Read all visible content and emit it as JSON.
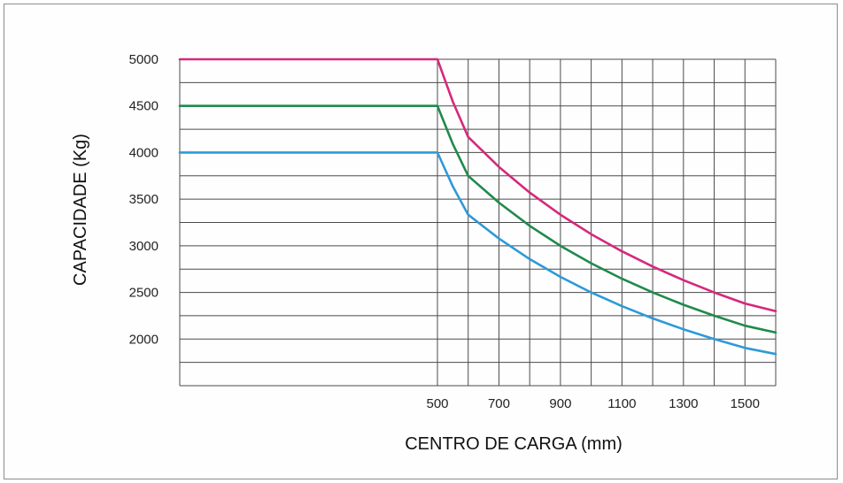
{
  "chart_data": {
    "type": "line",
    "title": "",
    "xlabel": "CENTRO DE CARGA (mm)",
    "ylabel": "CAPACIDADE (Kg)",
    "xlim": [
      0,
      1600
    ],
    "ylim": [
      1500,
      5000
    ],
    "x_ticks": [
      500,
      700,
      900,
      1100,
      1300,
      1500
    ],
    "y_ticks": [
      2000,
      2500,
      3000,
      3500,
      4000,
      4500,
      5000
    ],
    "grid": true,
    "legend": "none",
    "series": [
      {
        "color": "#d6287c",
        "points": [
          [
            0,
            5000
          ],
          [
            500,
            5000
          ],
          [
            550,
            4545
          ],
          [
            600,
            4167
          ],
          [
            700,
            3846
          ],
          [
            800,
            3571
          ],
          [
            900,
            3333
          ],
          [
            1000,
            3125
          ],
          [
            1100,
            2941
          ],
          [
            1200,
            2778
          ],
          [
            1300,
            2632
          ],
          [
            1400,
            2500
          ],
          [
            1500,
            2381
          ],
          [
            1600,
            2300
          ]
        ]
      },
      {
        "color": "#1f8a4c",
        "points": [
          [
            0,
            4500
          ],
          [
            500,
            4500
          ],
          [
            550,
            4091
          ],
          [
            600,
            3750
          ],
          [
            700,
            3462
          ],
          [
            800,
            3214
          ],
          [
            900,
            3000
          ],
          [
            1000,
            2813
          ],
          [
            1100,
            2647
          ],
          [
            1200,
            2500
          ],
          [
            1300,
            2368
          ],
          [
            1400,
            2250
          ],
          [
            1500,
            2143
          ],
          [
            1600,
            2070
          ]
        ]
      },
      {
        "color": "#2d9ad8",
        "points": [
          [
            0,
            4000
          ],
          [
            500,
            4000
          ],
          [
            550,
            3636
          ],
          [
            600,
            3333
          ],
          [
            700,
            3077
          ],
          [
            800,
            2857
          ],
          [
            900,
            2667
          ],
          [
            1000,
            2500
          ],
          [
            1100,
            2353
          ],
          [
            1200,
            2222
          ],
          [
            1300,
            2105
          ],
          [
            1400,
            2000
          ],
          [
            1500,
            1905
          ],
          [
            1600,
            1840
          ]
        ]
      }
    ],
    "colors": {
      "grid": "#4a4a4a",
      "frame": "#8d8d8d"
    }
  }
}
